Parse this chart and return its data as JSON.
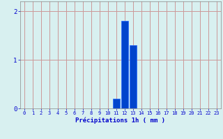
{
  "hours": [
    0,
    1,
    2,
    3,
    4,
    5,
    6,
    7,
    8,
    9,
    10,
    11,
    12,
    13,
    14,
    15,
    16,
    17,
    18,
    19,
    20,
    21,
    22,
    23
  ],
  "values": [
    0,
    0,
    0,
    0,
    0,
    0,
    0,
    0,
    0,
    0,
    0,
    0.2,
    1.8,
    1.3,
    0,
    0,
    0,
    0,
    0,
    0,
    0,
    0,
    0,
    0
  ],
  "bar_color": "#0044cc",
  "bar_edge_color": "#2266ff",
  "background_color": "#d8f0f0",
  "grid_color": "#cc9999",
  "xlabel": "Précipitations 1h ( mm )",
  "xlabel_color": "#0000cc",
  "tick_color": "#0000cc",
  "ylim": [
    0,
    2.2
  ],
  "yticks": [
    0,
    1,
    2
  ],
  "xlim": [
    -0.5,
    23.5
  ],
  "xtick_fontsize": 5.0,
  "ytick_fontsize": 6.5,
  "xlabel_fontsize": 6.5
}
